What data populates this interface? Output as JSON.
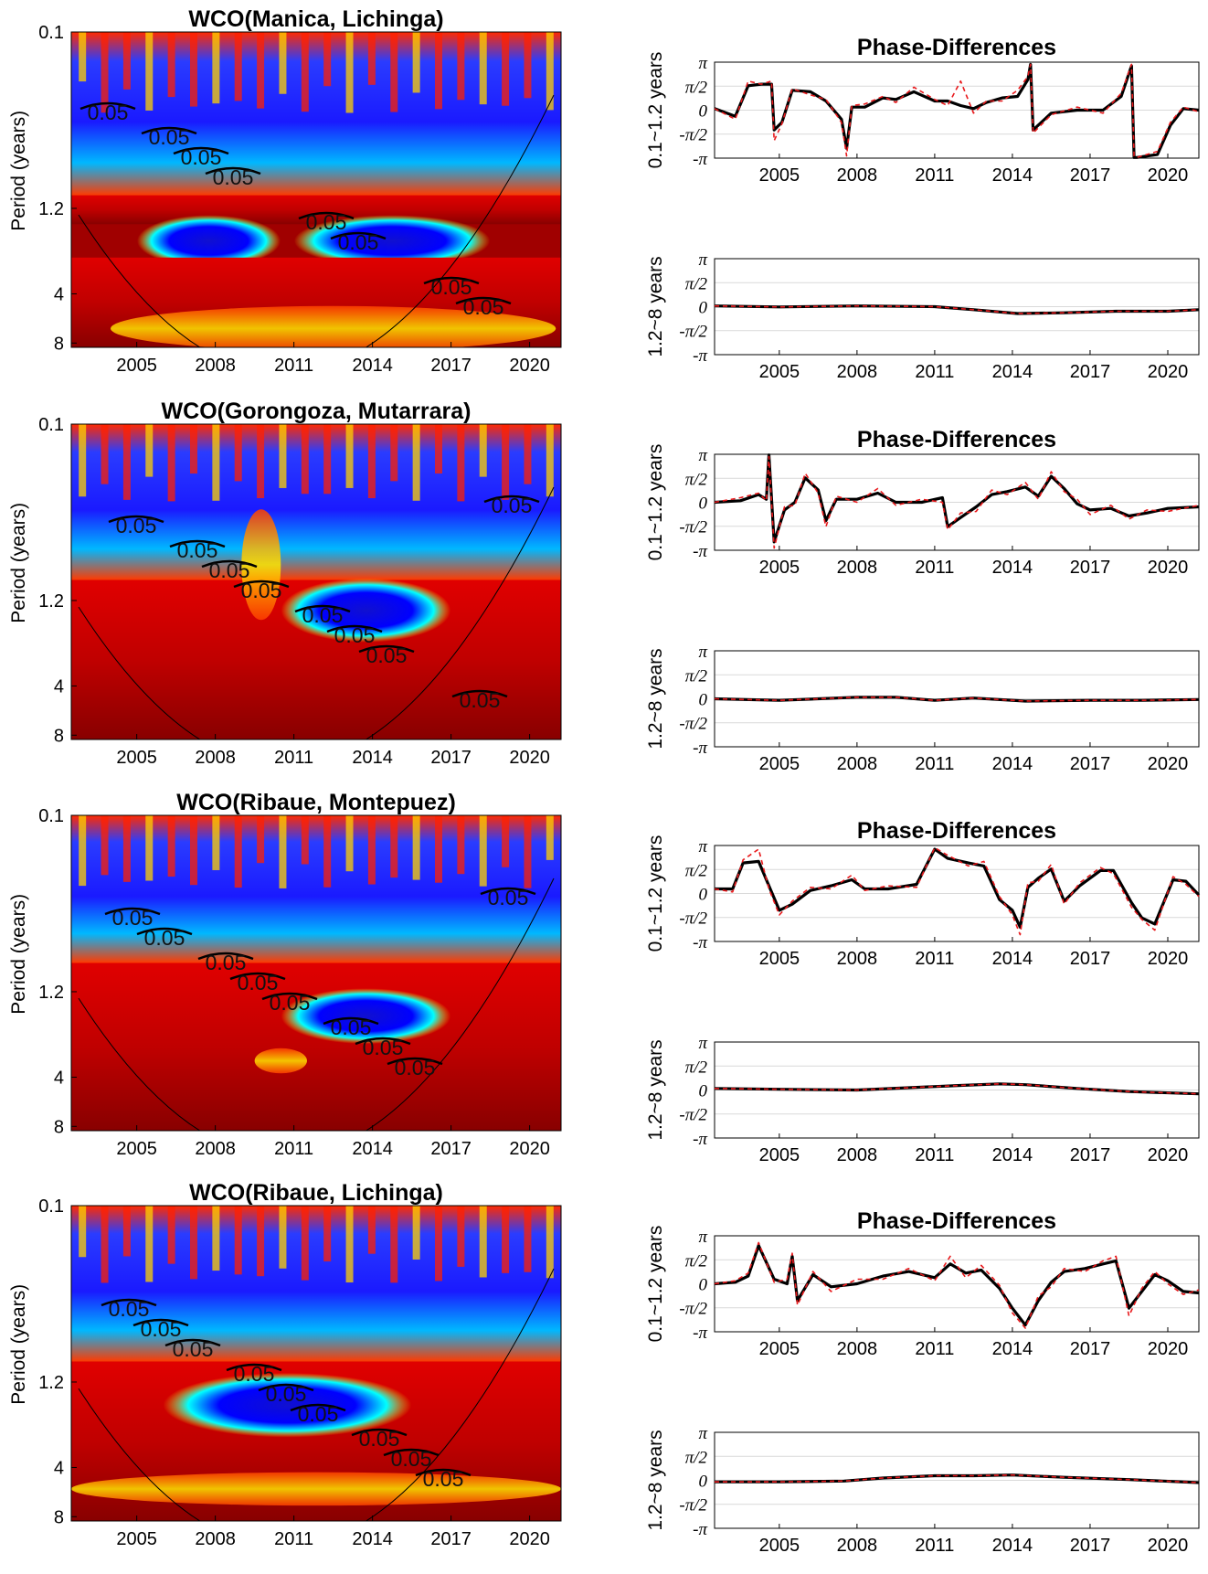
{
  "x_ticks": [
    "2005",
    "2008",
    "2011",
    "2014",
    "2017",
    "2020"
  ],
  "period_ticks": [
    "0.1",
    "1.2",
    "4",
    "8"
  ],
  "period_label": "Period (years)",
  "phase_ticks": [
    "π",
    "π/2",
    "0",
    "-π/2",
    "-π"
  ],
  "contour_label": "0.05",
  "colors": {
    "series_main": "#000000",
    "series_dashed": "#e8191c",
    "grid": "#d9d9d9",
    "colormap": [
      "#00007f",
      "#0000ff",
      "#00ffff",
      "#ffff00",
      "#ff0000",
      "#7f0000"
    ]
  },
  "chart_data": [
    {
      "type": "heatmap",
      "title": "WCO(Manica, Lichinga)",
      "ylabel": "Period (years)",
      "x_ticks": [
        2005,
        2008,
        2011,
        2014,
        2017,
        2020
      ],
      "xlim": [
        2002.5,
        2021.2
      ],
      "y_ticks": [
        "0.1",
        "1.2",
        "4",
        "8"
      ],
      "y_scale": "log",
      "bands": [
        {
          "period": [
            0.1,
            1.0
          ],
          "state": "mixed"
        },
        {
          "period": [
            1.0,
            1.5
          ],
          "state": "high"
        },
        {
          "period": [
            1.5,
            2.4
          ],
          "state": "low",
          "x": [
            2005.5,
            2010.0
          ]
        },
        {
          "period": [
            1.5,
            2.4
          ],
          "state": "low",
          "x": [
            2011.5,
            2018.0
          ]
        },
        {
          "period": [
            2.4,
            8.5
          ],
          "state": "high"
        },
        {
          "period": [
            5.0,
            8.5
          ],
          "state": "medium",
          "x": [
            2004.0,
            2021.0
          ]
        }
      ],
      "contour_labels": [
        "0.05",
        "0.05",
        "0.05",
        "0.05",
        "0.05",
        "0.05",
        "0.05",
        "0.05"
      ],
      "cone_of_influence": true
    },
    {
      "type": "line",
      "title": "Phase-Differences",
      "ylabel": "0.1~1.2 years",
      "x_ticks": [
        2005,
        2008,
        2011,
        2014,
        2017,
        2020
      ],
      "xlim": [
        2002.5,
        2021.2
      ],
      "ylim": [
        -3.1416,
        3.1416
      ],
      "y_ticks": [
        "π",
        "π/2",
        "0",
        "-π/2",
        "-π"
      ],
      "grid": true,
      "x": [
        2002.5,
        2003.3,
        2003.8,
        2004.3,
        2004.7,
        2004.8,
        2005.1,
        2005.5,
        2006.2,
        2006.8,
        2007.4,
        2007.6,
        2007.8,
        2008.3,
        2009.0,
        2009.5,
        2010.2,
        2011.0,
        2011.5,
        2012.0,
        2012.5,
        2013.0,
        2013.6,
        2014.2,
        2014.6,
        2014.7,
        2014.8,
        2015.5,
        2016.5,
        2017.5,
        2018.2,
        2018.6,
        2018.7,
        2018.8,
        2019.6,
        2020.1,
        2020.6,
        2021.2
      ],
      "series": [
        {
          "values": [
            0.1,
            -0.4,
            1.6,
            1.7,
            1.7,
            -1.3,
            -0.8,
            1.3,
            1.2,
            0.6,
            -0.6,
            -2.5,
            0.2,
            0.2,
            0.8,
            0.7,
            1.2,
            0.6,
            0.6,
            0.3,
            0.1,
            0.5,
            0.8,
            0.9,
            2.0,
            3.0,
            -1.3,
            -0.2,
            0.0,
            0.0,
            0.9,
            2.9,
            -3.1,
            -3.1,
            -2.9,
            -1.0,
            0.1,
            0.0
          ]
        },
        {
          "values": [
            0.1,
            -0.6,
            1.9,
            1.7,
            1.9,
            -2.0,
            -0.9,
            1.4,
            1.0,
            0.7,
            -0.8,
            -3.0,
            0.3,
            0.4,
            0.9,
            0.5,
            1.5,
            0.7,
            0.3,
            1.9,
            -0.2,
            0.6,
            0.6,
            1.3,
            2.2,
            3.0,
            -1.5,
            -0.3,
            0.2,
            -0.2,
            1.1,
            3.0,
            -3.0,
            -3.1,
            -2.7,
            -0.8,
            0.2,
            -0.1
          ]
        }
      ]
    },
    {
      "type": "line",
      "ylabel": "1.2~8 years",
      "x_ticks": [
        2005,
        2008,
        2011,
        2014,
        2017,
        2020
      ],
      "xlim": [
        2002.5,
        2021.2
      ],
      "ylim": [
        -3.1416,
        3.1416
      ],
      "y_ticks": [
        "π",
        "π/2",
        "0",
        "-π/2",
        "-π"
      ],
      "grid": true,
      "x": [
        2002.5,
        2005.0,
        2008.0,
        2011.0,
        2012.5,
        2014.2,
        2016.0,
        2018.0,
        2020.0,
        2021.2
      ],
      "series": [
        {
          "values": [
            0.05,
            -0.02,
            0.05,
            0.0,
            -0.2,
            -0.45,
            -0.4,
            -0.3,
            -0.3,
            -0.2
          ]
        },
        {
          "values": [
            0.05,
            -0.02,
            0.05,
            0.0,
            -0.2,
            -0.45,
            -0.4,
            -0.3,
            -0.3,
            -0.2
          ]
        }
      ]
    },
    {
      "type": "heatmap",
      "title": "WCO(Gorongoza, Mutarrara)",
      "ylabel": "Period (years)",
      "x_ticks": [
        2005,
        2008,
        2011,
        2014,
        2017,
        2020
      ],
      "xlim": [
        2002.5,
        2021.2
      ],
      "y_ticks": [
        "0.1",
        "1.2",
        "4",
        "8"
      ],
      "y_scale": "log",
      "bands": [
        {
          "period": [
            0.1,
            0.9
          ],
          "state": "mixed"
        },
        {
          "period": [
            0.9,
            8.5
          ],
          "state": "high"
        },
        {
          "period": [
            1.0,
            1.9
          ],
          "state": "low",
          "x": [
            2011.0,
            2016.5
          ]
        },
        {
          "period": [
            0.35,
            1.5
          ],
          "state": "medium",
          "x": [
            2009.0,
            2010.5
          ]
        }
      ],
      "contour_labels": [
        "0.05",
        "0.05",
        "0.05",
        "0.05",
        "0.05",
        "0.05",
        "0.05",
        "0.05",
        "0.05"
      ],
      "cone_of_influence": true
    },
    {
      "type": "line",
      "title": "Phase-Differences",
      "ylabel": "0.1~1.2 years",
      "x_ticks": [
        2005,
        2008,
        2011,
        2014,
        2017,
        2020
      ],
      "xlim": [
        2002.5,
        2021.2
      ],
      "ylim": [
        -3.1416,
        3.1416
      ],
      "y_ticks": [
        "π",
        "π/2",
        "0",
        "-π/2",
        "-π"
      ],
      "grid": true,
      "x": [
        2002.5,
        2003.5,
        2004.2,
        2004.5,
        2004.6,
        2004.8,
        2005.2,
        2005.6,
        2006.0,
        2006.5,
        2006.8,
        2007.2,
        2008.0,
        2008.8,
        2009.5,
        2010.5,
        2011.3,
        2011.5,
        2012.0,
        2012.6,
        2013.2,
        2013.8,
        2014.5,
        2015.0,
        2015.5,
        2016.0,
        2016.5,
        2017.0,
        2017.8,
        2018.5,
        2019.2,
        2020.0,
        2021.2
      ],
      "series": [
        {
          "values": [
            0.0,
            0.1,
            0.5,
            0.2,
            3.1,
            -2.6,
            -0.5,
            0.0,
            1.6,
            0.8,
            -1.2,
            0.2,
            0.2,
            0.6,
            0.0,
            0.0,
            0.3,
            -1.6,
            -1.0,
            -0.3,
            0.5,
            0.7,
            1.0,
            0.4,
            1.7,
            0.9,
            -0.1,
            -0.5,
            -0.4,
            -0.9,
            -0.7,
            -0.4,
            -0.3
          ]
        },
        {
          "values": [
            0.0,
            0.3,
            0.6,
            0.1,
            3.0,
            -3.0,
            -0.3,
            -0.2,
            1.9,
            0.6,
            -1.6,
            0.4,
            0.0,
            0.9,
            -0.2,
            0.2,
            0.0,
            -1.8,
            -0.7,
            -0.6,
            0.8,
            0.5,
            1.3,
            0.2,
            2.0,
            0.7,
            0.2,
            -0.8,
            -0.2,
            -1.1,
            -0.5,
            -0.6,
            -0.2
          ]
        }
      ]
    },
    {
      "type": "line",
      "ylabel": "1.2~8 years",
      "x_ticks": [
        2005,
        2008,
        2011,
        2014,
        2017,
        2020
      ],
      "xlim": [
        2002.5,
        2021.2
      ],
      "ylim": [
        -3.1416,
        3.1416
      ],
      "y_ticks": [
        "π",
        "π/2",
        "0",
        "-π/2",
        "-π"
      ],
      "grid": true,
      "x": [
        2002.5,
        2005.0,
        2008.0,
        2009.5,
        2011.0,
        2012.5,
        2014.5,
        2017.0,
        2019.0,
        2021.2
      ],
      "series": [
        {
          "values": [
            0.0,
            -0.1,
            0.1,
            0.1,
            -0.1,
            0.05,
            -0.15,
            -0.1,
            -0.1,
            -0.05
          ]
        },
        {
          "values": [
            0.0,
            -0.1,
            0.1,
            0.1,
            -0.1,
            0.05,
            -0.15,
            -0.1,
            -0.1,
            -0.05
          ]
        }
      ]
    },
    {
      "type": "heatmap",
      "title": "WCO(Ribaue, Montepuez)",
      "ylabel": "Period (years)",
      "x_ticks": [
        2005,
        2008,
        2011,
        2014,
        2017,
        2020
      ],
      "xlim": [
        2002.5,
        2021.2
      ],
      "y_ticks": [
        "0.1",
        "1.2",
        "4",
        "8"
      ],
      "y_scale": "log",
      "bands": [
        {
          "period": [
            0.1,
            0.8
          ],
          "state": "mixed"
        },
        {
          "period": [
            0.8,
            8.5
          ],
          "state": "high"
        },
        {
          "period": [
            1.3,
            2.2
          ],
          "state": "low",
          "x": [
            2011.0,
            2016.5
          ]
        },
        {
          "period": [
            2.8,
            3.6
          ],
          "state": "medium",
          "x": [
            2009.5,
            2011.5
          ]
        }
      ],
      "contour_labels": [
        "0.05",
        "0.05",
        "0.05",
        "0.05",
        "0.05",
        "0.05",
        "0.05",
        "0.05",
        "0.05"
      ],
      "cone_of_influence": true
    },
    {
      "type": "line",
      "title": "Phase-Differences",
      "ylabel": "0.1~1.2 years",
      "x_ticks": [
        2005,
        2008,
        2011,
        2014,
        2017,
        2020
      ],
      "xlim": [
        2002.5,
        2021.2
      ],
      "ylim": [
        -3.1416,
        3.1416
      ],
      "y_ticks": [
        "π",
        "π/2",
        "0",
        "-π/2",
        "-π"
      ],
      "grid": true,
      "x": [
        2002.5,
        2003.2,
        2003.6,
        2004.2,
        2004.6,
        2005.0,
        2005.5,
        2006.2,
        2007.0,
        2007.8,
        2008.3,
        2009.2,
        2010.3,
        2011.0,
        2011.5,
        2012.3,
        2012.9,
        2013.5,
        2014.0,
        2014.3,
        2014.6,
        2015.0,
        2015.5,
        2016.0,
        2016.6,
        2017.4,
        2017.9,
        2018.6,
        2019.0,
        2019.5,
        2020.2,
        2020.7,
        2021.2
      ],
      "series": [
        {
          "values": [
            0.3,
            0.3,
            2.0,
            2.1,
            0.5,
            -1.1,
            -0.7,
            0.2,
            0.5,
            0.9,
            0.3,
            0.3,
            0.6,
            2.9,
            2.3,
            2.0,
            1.8,
            -0.4,
            -1.1,
            -2.2,
            0.4,
            1.0,
            1.6,
            -0.5,
            0.5,
            1.5,
            1.5,
            -0.6,
            -1.6,
            -2.0,
            0.9,
            0.8,
            -0.1
          ]
        },
        {
          "values": [
            0.3,
            0.1,
            2.2,
            2.9,
            0.3,
            -1.4,
            -0.5,
            0.4,
            0.3,
            1.2,
            0.2,
            0.5,
            0.4,
            3.0,
            2.5,
            1.8,
            2.1,
            -0.2,
            -1.4,
            -2.7,
            0.7,
            0.8,
            1.9,
            -0.7,
            0.7,
            1.7,
            1.3,
            -0.9,
            -1.7,
            -2.4,
            1.1,
            0.6,
            -0.2
          ]
        }
      ]
    },
    {
      "type": "line",
      "ylabel": "1.2~8 years",
      "x_ticks": [
        2005,
        2008,
        2011,
        2014,
        2017,
        2020
      ],
      "xlim": [
        2002.5,
        2021.2
      ],
      "ylim": [
        -3.1416,
        3.1416
      ],
      "y_ticks": [
        "π",
        "π/2",
        "0",
        "-π/2",
        "-π"
      ],
      "grid": true,
      "x": [
        2002.5,
        2005.0,
        2008.0,
        2010.0,
        2012.0,
        2013.5,
        2014.5,
        2016.5,
        2018.5,
        2021.2
      ],
      "series": [
        {
          "values": [
            0.1,
            0.05,
            0.0,
            0.15,
            0.3,
            0.4,
            0.35,
            0.1,
            -0.1,
            -0.25
          ]
        },
        {
          "values": [
            0.1,
            0.05,
            0.0,
            0.15,
            0.3,
            0.4,
            0.35,
            0.1,
            -0.1,
            -0.25
          ]
        }
      ]
    },
    {
      "type": "heatmap",
      "title": "WCO(Ribaue, Lichinga)",
      "ylabel": "Period (years)",
      "x_ticks": [
        2005,
        2008,
        2011,
        2014,
        2017,
        2020
      ],
      "xlim": [
        2002.5,
        2021.2
      ],
      "y_ticks": [
        "0.1",
        "1.2",
        "4",
        "8"
      ],
      "y_scale": "log",
      "bands": [
        {
          "period": [
            0.1,
            0.9
          ],
          "state": "mixed"
        },
        {
          "period": [
            0.9,
            8.5
          ],
          "state": "high"
        },
        {
          "period": [
            1.2,
            2.3
          ],
          "state": "low",
          "x": [
            2006.5,
            2015.0
          ]
        },
        {
          "period": [
            4.5,
            6.5
          ],
          "state": "medium",
          "x": [
            2002.5,
            2021.2
          ]
        }
      ],
      "contour_labels": [
        "0.05",
        "0.05",
        "0.05",
        "0.05",
        "0.05",
        "0.05",
        "0.05",
        "0.05",
        "0.05"
      ],
      "cone_of_influence": true
    },
    {
      "type": "line",
      "title": "Phase-Differences",
      "ylabel": "0.1~1.2 years",
      "x_ticks": [
        2005,
        2008,
        2011,
        2014,
        2017,
        2020
      ],
      "xlim": [
        2002.5,
        2021.2
      ],
      "ylim": [
        -3.1416,
        3.1416
      ],
      "y_ticks": [
        "π",
        "π/2",
        "0",
        "-π/2",
        "-π"
      ],
      "grid": true,
      "x": [
        2002.5,
        2003.3,
        2003.8,
        2004.2,
        2004.8,
        2005.3,
        2005.5,
        2005.7,
        2006.3,
        2007.0,
        2008.0,
        2009.0,
        2010.0,
        2011.0,
        2011.6,
        2012.2,
        2012.8,
        2013.5,
        2014.0,
        2014.5,
        2015.0,
        2015.5,
        2016.0,
        2016.8,
        2017.5,
        2018.0,
        2018.5,
        2019.0,
        2019.5,
        2020.0,
        2020.6,
        2021.2
      ],
      "series": [
        {
          "values": [
            0.0,
            0.1,
            0.5,
            2.5,
            0.3,
            0.0,
            1.8,
            -1.1,
            0.6,
            -0.2,
            0.0,
            0.5,
            0.8,
            0.4,
            1.3,
            0.7,
            0.9,
            -0.3,
            -1.6,
            -2.7,
            -1.1,
            0.1,
            0.8,
            1.0,
            1.3,
            1.5,
            -1.6,
            -0.5,
            0.6,
            0.2,
            -0.5,
            -0.6
          ]
        },
        {
          "values": [
            0.0,
            0.2,
            0.7,
            2.7,
            0.1,
            0.3,
            2.0,
            -1.4,
            0.8,
            -0.5,
            0.3,
            0.3,
            1.0,
            0.2,
            1.8,
            0.4,
            1.2,
            -0.1,
            -1.9,
            -2.9,
            -0.8,
            -0.2,
            1.0,
            0.8,
            1.5,
            1.8,
            -2.1,
            -0.3,
            0.8,
            0.0,
            -0.7,
            -0.4
          ]
        }
      ]
    },
    {
      "type": "line",
      "ylabel": "1.2~8 years",
      "x_ticks": [
        2005,
        2008,
        2011,
        2014,
        2017,
        2020
      ],
      "xlim": [
        2002.5,
        2021.2
      ],
      "ylim": [
        -3.1416,
        3.1416
      ],
      "y_ticks": [
        "π",
        "π/2",
        "0",
        "-π/2",
        "-π"
      ],
      "grid": true,
      "x": [
        2002.5,
        2005.0,
        2007.5,
        2009.0,
        2011.0,
        2012.5,
        2014.0,
        2016.0,
        2018.5,
        2021.2
      ],
      "series": [
        {
          "values": [
            -0.1,
            -0.1,
            -0.05,
            0.15,
            0.3,
            0.3,
            0.35,
            0.2,
            0.05,
            -0.15
          ]
        },
        {
          "values": [
            -0.1,
            -0.1,
            -0.05,
            0.15,
            0.3,
            0.3,
            0.35,
            0.2,
            0.05,
            -0.15
          ]
        }
      ]
    }
  ]
}
